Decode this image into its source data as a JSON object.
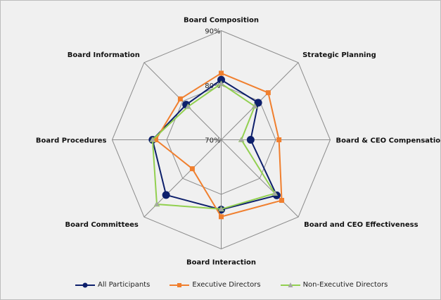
{
  "chart_data": {
    "type": "radar",
    "axes": [
      "Board Composition",
      "Strategic Planning",
      "Board & CEO Compensation",
      "Board and CEO Effectiveness",
      "Board Interaction",
      "Board Committees",
      "Board Procedures",
      "Board Information"
    ],
    "rlim": [
      70,
      90
    ],
    "ticks": [
      {
        "value": 70,
        "label": "70%"
      },
      {
        "value": 80,
        "label": "80%"
      },
      {
        "value": 90,
        "label": "90%"
      }
    ],
    "grid": true,
    "legend": "bottom",
    "series": [
      {
        "name": "All Participants",
        "color": "#0d1f6b",
        "marker": "circle",
        "values": [
          81.0,
          79.6,
          75.4,
          84.4,
          82.8,
          84.3,
          82.6,
          79.1
        ]
      },
      {
        "name": "Executive Directors",
        "color": "#f07f2e",
        "marker": "square",
        "values": [
          82.2,
          82.2,
          80.6,
          85.7,
          84.1,
          77.5,
          82.0,
          80.6
        ]
      },
      {
        "name": "Non-Executive Directors",
        "color": "#92d050",
        "marker": "triangle",
        "values": [
          80.3,
          78.7,
          73.7,
          83.9,
          82.7,
          86.7,
          82.6,
          78.6
        ]
      }
    ]
  }
}
